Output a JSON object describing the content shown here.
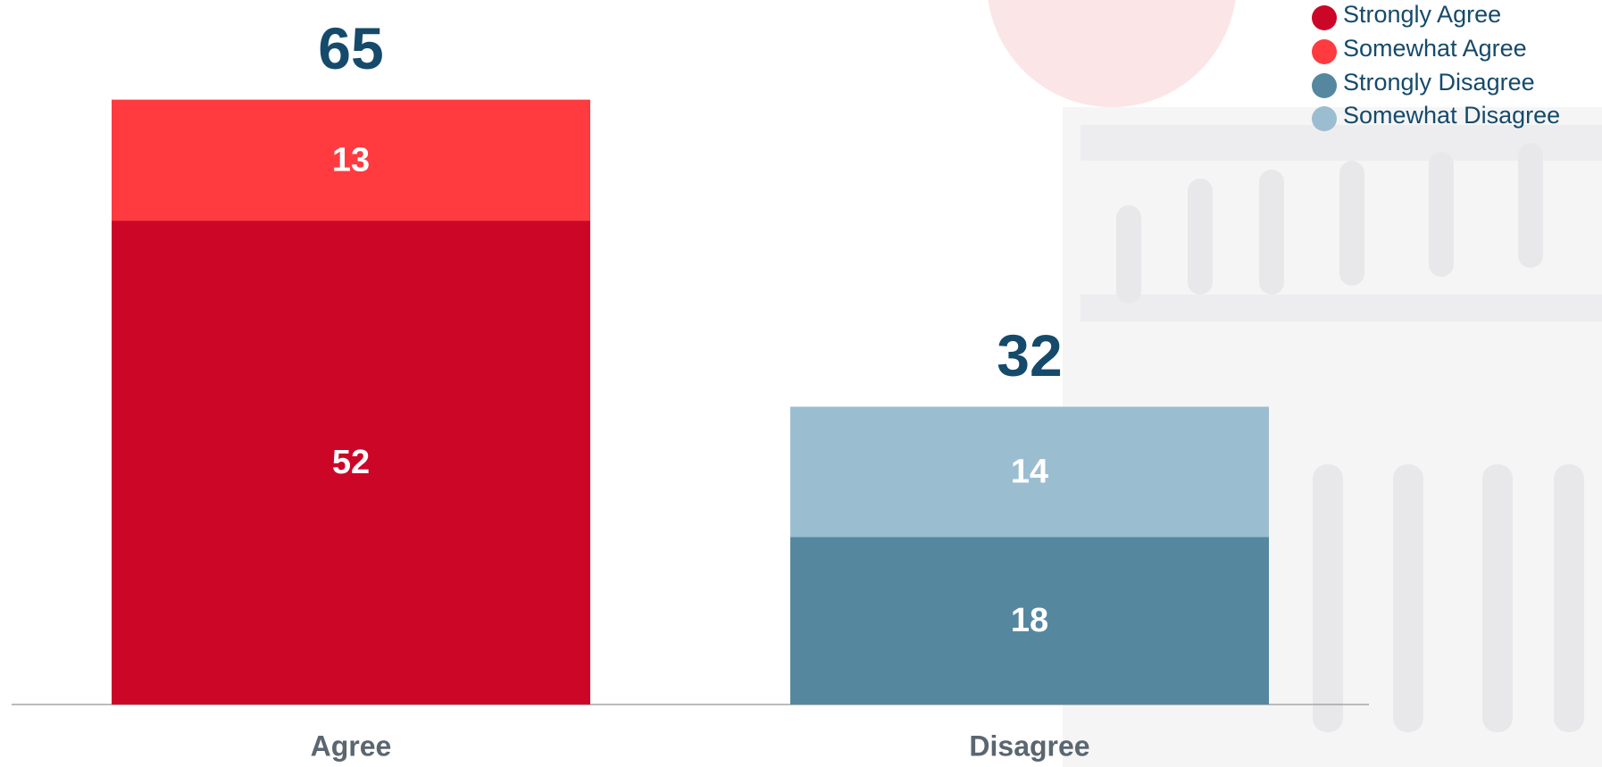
{
  "chart_data": {
    "type": "stacked-bar",
    "categories": [
      "Agree",
      "Disagree"
    ],
    "series": [
      {
        "name": "Strongly Agree",
        "color": "#cc0627",
        "values": [
          52,
          null
        ]
      },
      {
        "name": "Somewhat Agree",
        "color": "#ff3b3f",
        "values": [
          13,
          null
        ]
      },
      {
        "name": "Strongly Disagree",
        "color": "#55889f",
        "values": [
          null,
          18
        ]
      },
      {
        "name": "Somewhat Disagree",
        "color": "#9bbdd0",
        "values": [
          null,
          14
        ]
      }
    ],
    "totals": [
      65,
      32
    ],
    "ylim": [
      0,
      70
    ],
    "grid": false,
    "legend": "top-right"
  }
}
